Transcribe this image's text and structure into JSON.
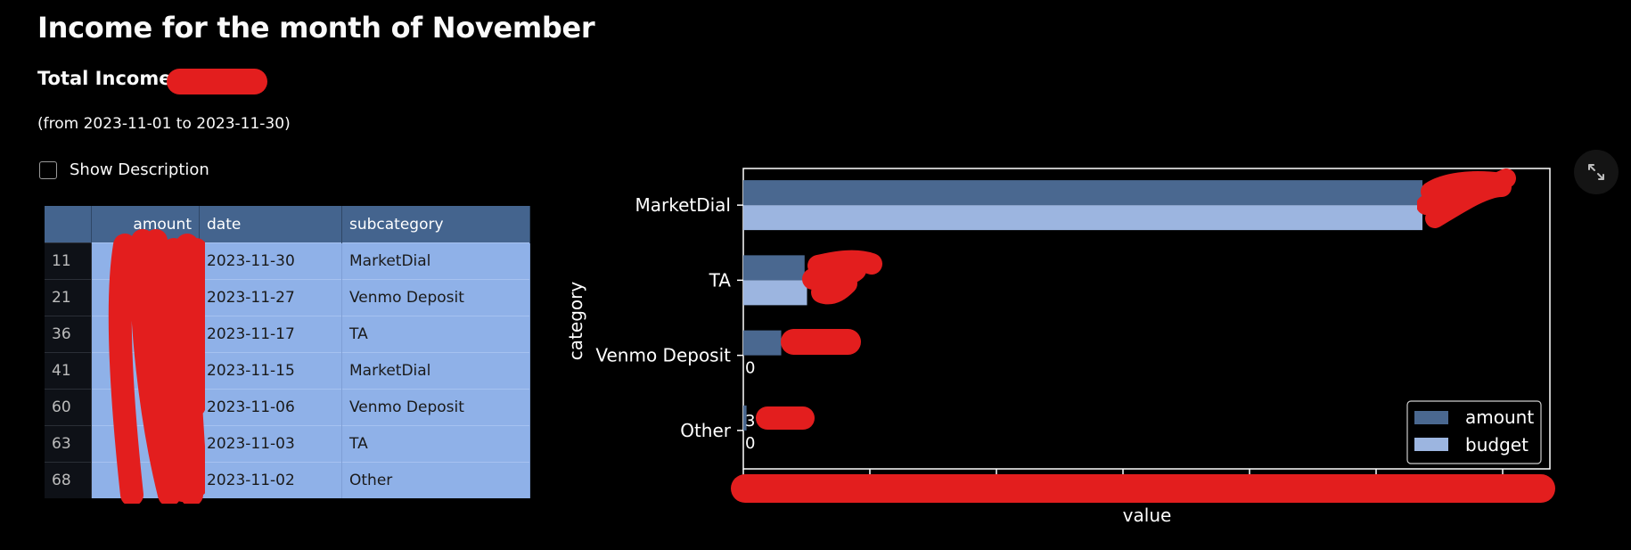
{
  "page": {
    "title": "Income for the month of November",
    "total_label": "Total Income:",
    "date_range": "(from 2023-11-01 to 2023-11-30)",
    "show_description_label": "Show Description"
  },
  "table": {
    "columns": [
      "",
      "amount",
      "date",
      "subcategory"
    ],
    "rows": [
      {
        "index": "11",
        "date": "2023-11-30",
        "subcategory": "MarketDial"
      },
      {
        "index": "21",
        "date": "2023-11-27",
        "subcategory": "Venmo Deposit"
      },
      {
        "index": "36",
        "date": "2023-11-17",
        "subcategory": "TA"
      },
      {
        "index": "41",
        "date": "2023-11-15",
        "subcategory": "MarketDial"
      },
      {
        "index": "60",
        "date": "2023-11-06",
        "subcategory": "Venmo Deposit"
      },
      {
        "index": "63",
        "date": "2023-11-03",
        "subcategory": "TA"
      },
      {
        "index": "68",
        "date": "2023-11-02",
        "subcategory": "Other"
      }
    ]
  },
  "chart_data": {
    "type": "bar",
    "orientation": "horizontal",
    "categories": [
      "MarketDial",
      "TA",
      "Venmo Deposit",
      "Other"
    ],
    "series": [
      {
        "name": "amount",
        "values": [
          0.842,
          0.076,
          0.047,
          0.004
        ]
      },
      {
        "name": "budget",
        "values": [
          0.842,
          0.079,
          0,
          0
        ]
      }
    ],
    "value_scale_note": "values relative to axis maximum (tick labels redacted)",
    "xlabel": "value",
    "ylabel": "category",
    "bar_text_visible": [
      "",
      "",
      "0",
      "3",
      "0"
    ],
    "legend_position": "lower-right",
    "grid": false,
    "colors": {
      "amount": "#4a6890",
      "budget": "#9cb5e0"
    }
  },
  "icons": {
    "expand": "expand-icon"
  },
  "colors": {
    "background": "#000000",
    "redaction": "#e31e1e",
    "header": "#44648e",
    "cell": "#8fb1e8"
  }
}
